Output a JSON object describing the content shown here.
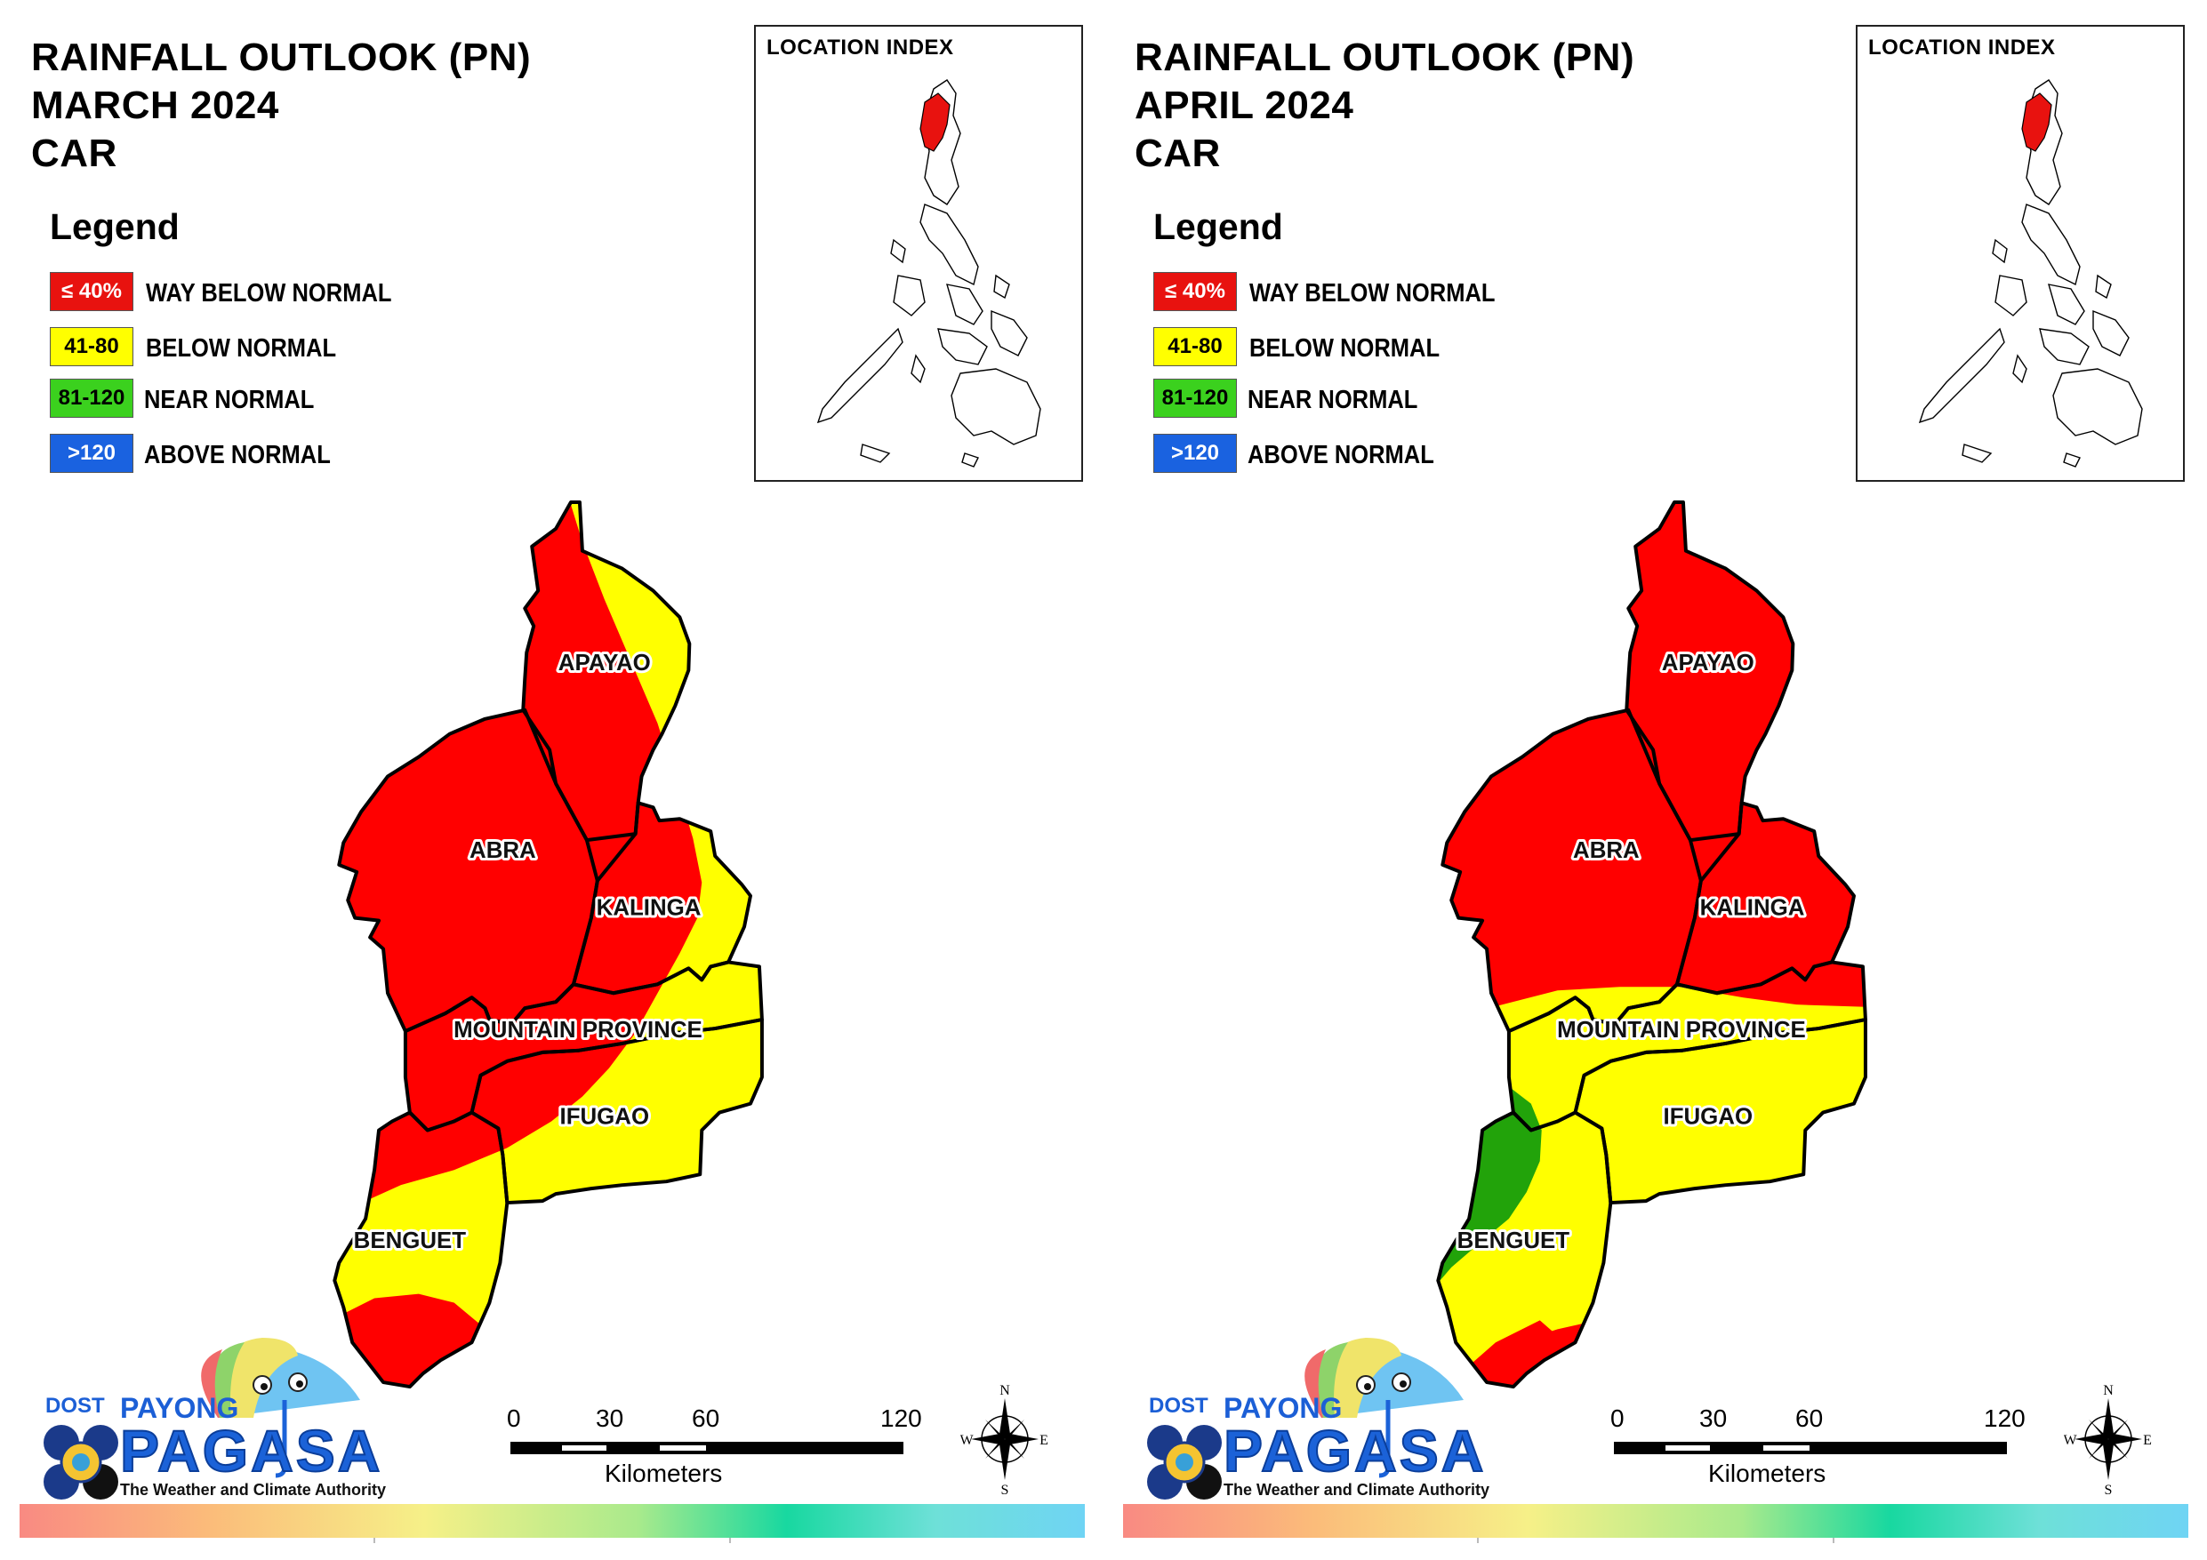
{
  "legend": {
    "title": "Legend",
    "items": [
      {
        "swatch": "≤ 40%",
        "label": "WAY BELOW NORMAL",
        "color": "#e8120f",
        "text_color": "#ffffff"
      },
      {
        "swatch": "41-80",
        "label": "BELOW NORMAL",
        "color": "#ffff00",
        "text_color": "#000000"
      },
      {
        "swatch": "81-120",
        "label": "NEAR NORMAL",
        "color": "#3bd11e",
        "text_color": "#000000"
      },
      {
        "swatch": ">120",
        "label": "ABOVE NORMAL",
        "color": "#1a62e0",
        "text_color": "#ffffff"
      }
    ]
  },
  "location_index": {
    "title": "LOCATION INDEX"
  },
  "panels": [
    {
      "title_line1": "RAINFALL OUTLOOK (PN)",
      "title_line2": "MARCH 2024",
      "title_line3": "CAR",
      "provinces": {
        "apayao": {
          "label": "APAYAO",
          "category": "WAY BELOW NORMAL"
        },
        "abra": {
          "label": "ABRA",
          "category": "WAY BELOW NORMAL"
        },
        "kalinga": {
          "label": "KALINGA",
          "category": "WAY BELOW NORMAL"
        },
        "mountain_province": {
          "label": "MOUNTAIN PROVINCE",
          "category": "BELOW NORMAL"
        },
        "ifugao": {
          "label": "IFUGAO",
          "category": "BELOW NORMAL"
        },
        "benguet": {
          "label": "BENGUET",
          "category": "WAY BELOW NORMAL"
        }
      }
    },
    {
      "title_line1": "RAINFALL OUTLOOK (PN)",
      "title_line2": "APRIL 2024",
      "title_line3": "CAR",
      "provinces": {
        "apayao": {
          "label": "APAYAO",
          "category": "WAY BELOW NORMAL"
        },
        "abra": {
          "label": "ABRA",
          "category": "WAY BELOW NORMAL"
        },
        "kalinga": {
          "label": "KALINGA",
          "category": "WAY BELOW NORMAL"
        },
        "mountain_province": {
          "label": "MOUNTAIN PROVINCE",
          "category": "BELOW NORMAL"
        },
        "ifugao": {
          "label": "IFUGAO",
          "category": "BELOW NORMAL"
        },
        "benguet": {
          "label": "BENGUET",
          "category": "BELOW NORMAL"
        }
      }
    }
  ],
  "scale_bar": {
    "ticks": [
      "0",
      "30",
      "60",
      "120"
    ],
    "unit": "Kilometers"
  },
  "compass": {
    "n": "N",
    "s": "S",
    "e": "E",
    "w": "W"
  },
  "branding": {
    "dost": "DOST",
    "payong": "PAYONG",
    "pagasa": "PAGASA",
    "tagline": "The Weather and Climate Authority"
  }
}
